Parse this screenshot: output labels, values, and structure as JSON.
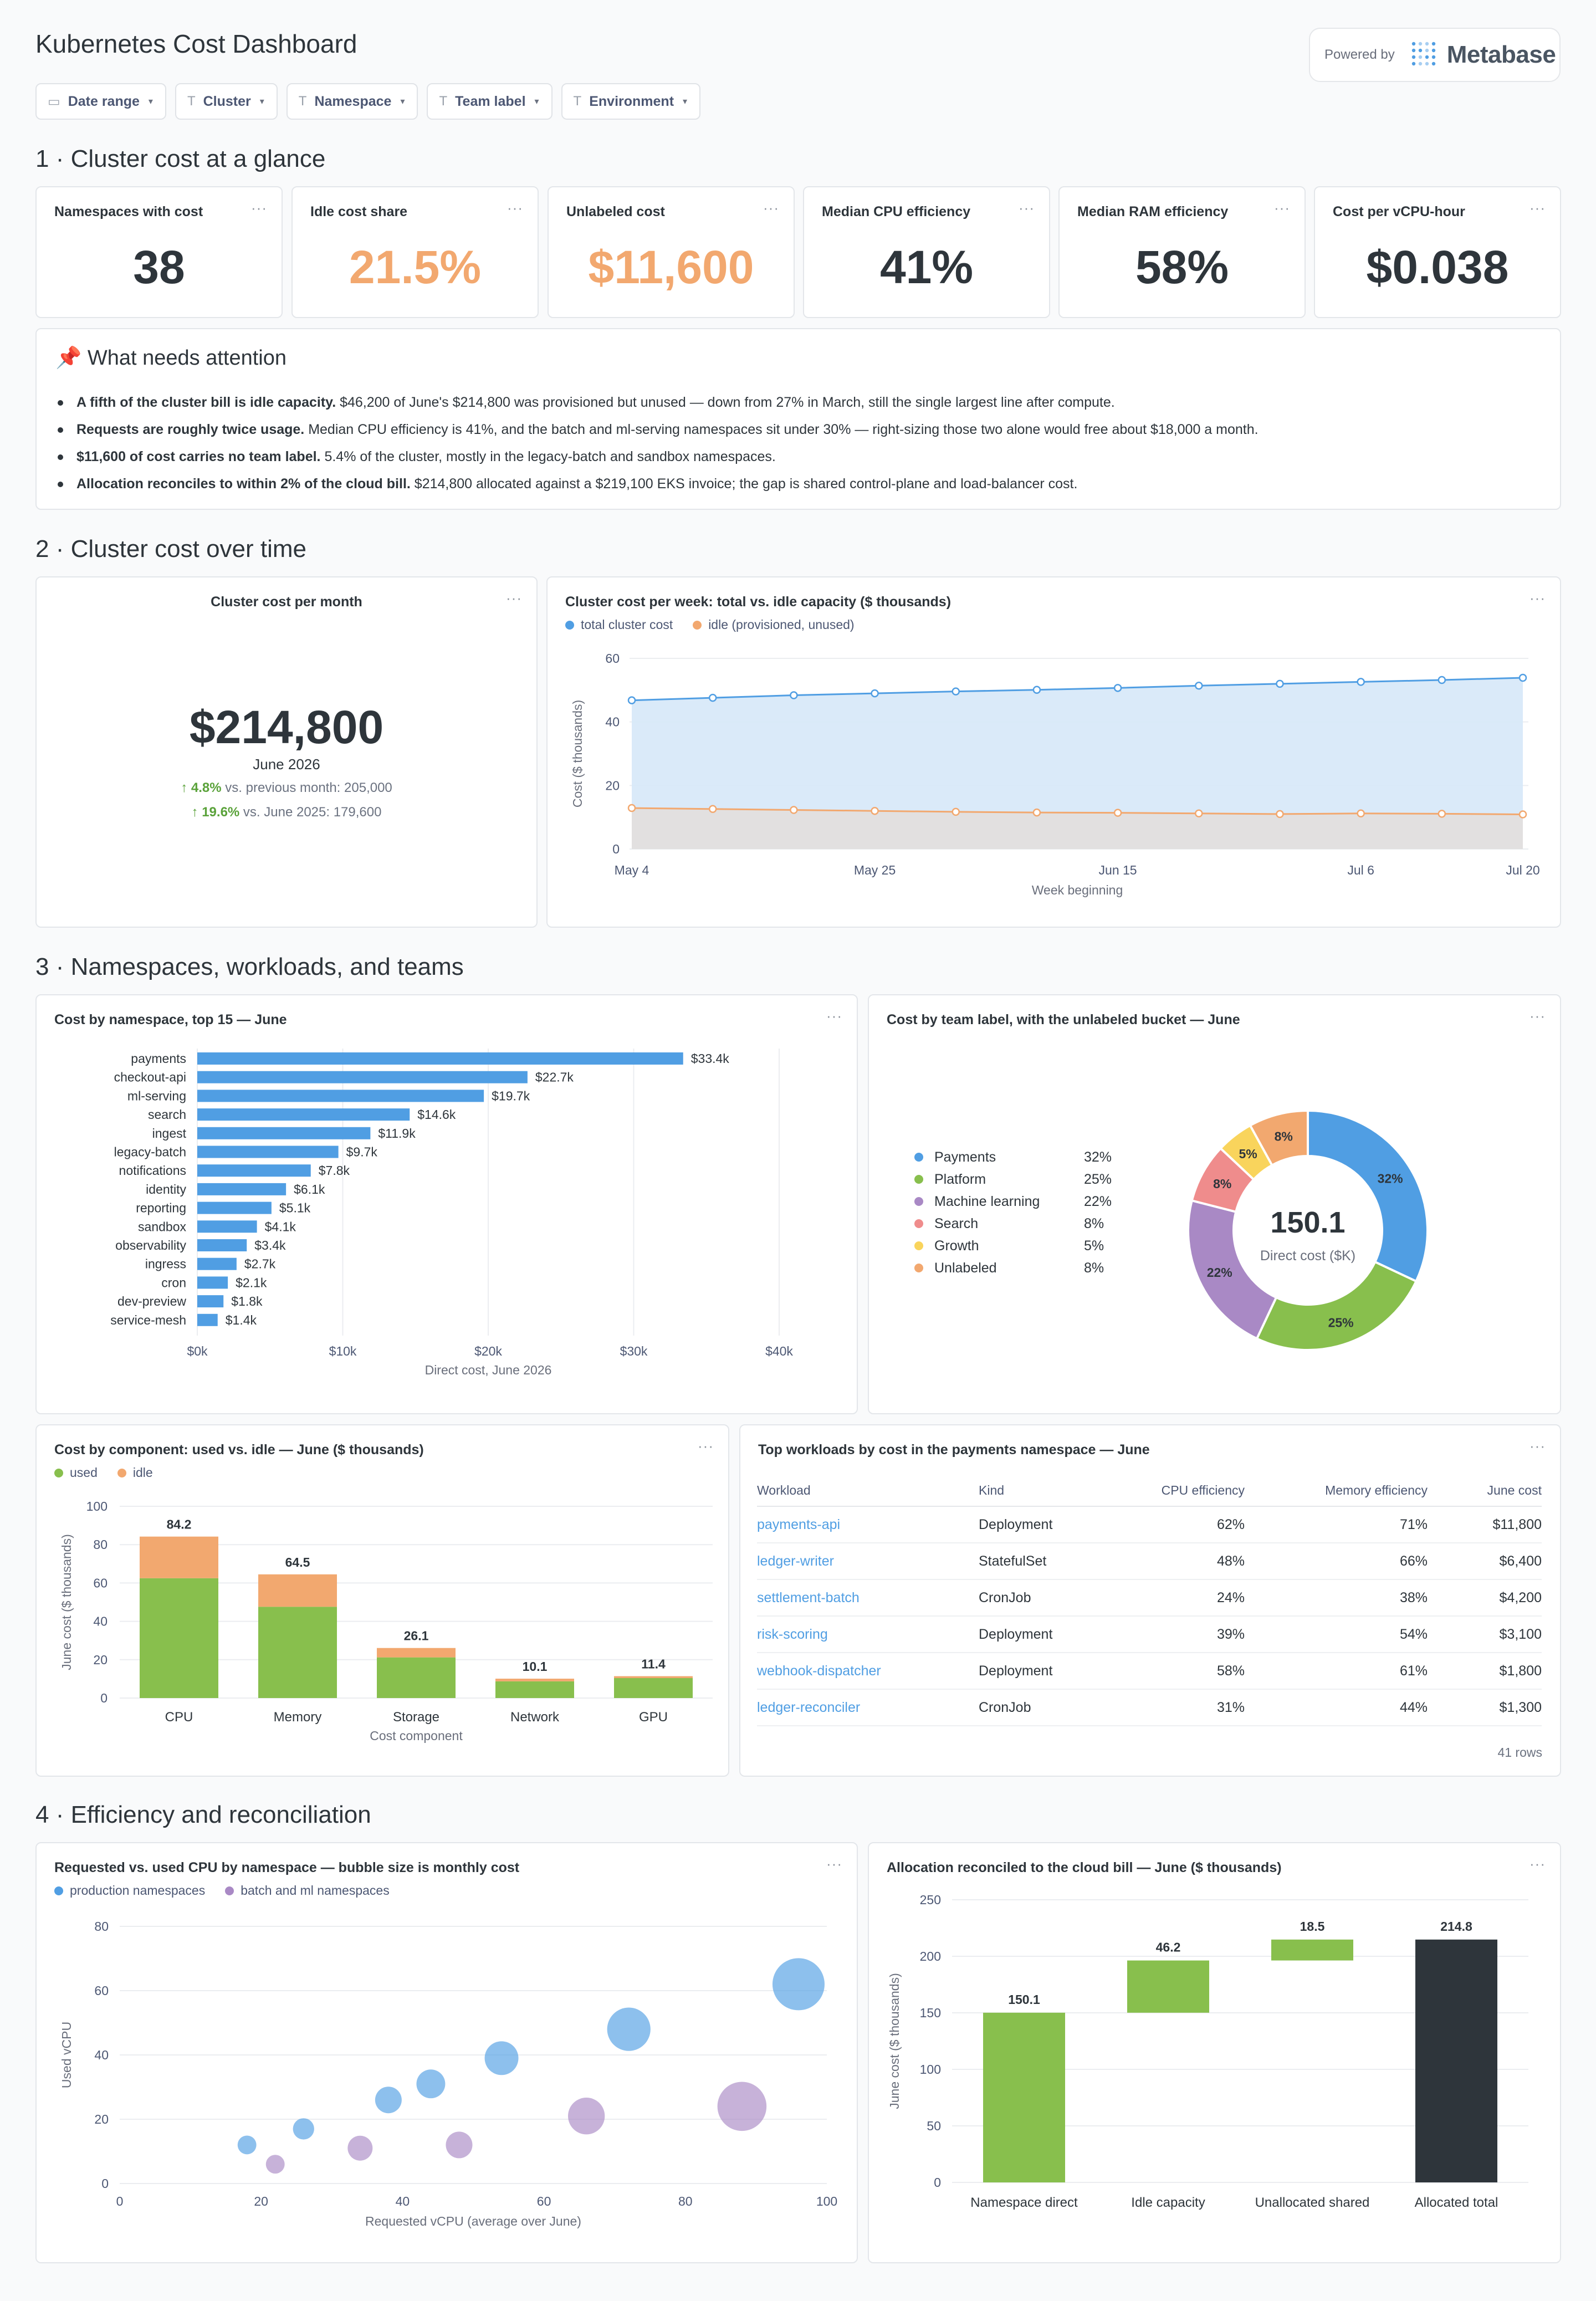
{
  "header": {
    "title": "Kubernetes Cost Dashboard",
    "powered_by": "Powered by",
    "brand": "Metabase"
  },
  "filters": [
    {
      "label": "Date range",
      "icon": "calendar-icon"
    },
    {
      "label": "Cluster",
      "icon": "text-filter-icon"
    },
    {
      "label": "Namespace",
      "icon": "text-filter-icon"
    },
    {
      "label": "Team label",
      "icon": "text-filter-icon"
    },
    {
      "label": "Environment",
      "icon": "text-filter-icon"
    }
  ],
  "sections": {
    "s1": "1 · Cluster cost at a glance",
    "s2": "2 · Cluster cost over time",
    "s3": "3 · Namespaces, workloads, and teams",
    "s4": "4 · Efficiency and reconciliation"
  },
  "menu_glyph": "···",
  "kpis": [
    {
      "label": "Namespaces with cost",
      "value": "38"
    },
    {
      "label": "Idle cost share",
      "value": "21.5%"
    },
    {
      "label": "Unlabeled cost",
      "value": "$11,600"
    },
    {
      "label": "Median CPU efficiency",
      "value": "41%"
    },
    {
      "label": "Median RAM efficiency",
      "value": "58%"
    },
    {
      "label": "Cost per vCPU-hour",
      "value": "$0.038"
    }
  ],
  "attention": {
    "icon": "📌",
    "title": "What needs attention",
    "items": [
      {
        "bold": "A fifth of the cluster bill is idle capacity.",
        "text": " $46,200 of June's $214,800 was provisioned but unused — down from 27% in March, still the single largest line after compute."
      },
      {
        "bold": "Requests are roughly twice usage.",
        "text": " Median CPU efficiency is 41%, and the batch and ml-serving namespaces sit under 30% — right-sizing those two alone would free about $18,000 a month."
      },
      {
        "bold": "$11,600 of cost carries no team label.",
        "text": " 5.4% of the cluster, mostly in the legacy-batch and sandbox namespaces."
      },
      {
        "bold": "Allocation reconciles to within 2% of the cloud bill.",
        "text": " $214,800 allocated against a $219,100 EKS invoice; the gap is shared control-plane and load-balancer cost."
      }
    ]
  },
  "monthly": {
    "title": "Cluster cost per month",
    "value": "$214,800",
    "period": "June 2026",
    "cmp1_pct": "↑ 4.8%",
    "cmp1_text": " vs. previous month: 205,000",
    "cmp2_pct": "↑ 19.6%",
    "cmp2_text": " vs. June 2025: 179,600"
  },
  "chart_data": [
    {
      "id": "weekly",
      "type": "area",
      "title": "Cluster cost per week: total vs. idle capacity ($ thousands)",
      "xlabel": "Week beginning",
      "ylabel": "Cost ($ thousands)",
      "x": [
        "May 4",
        "May 11",
        "May 18",
        "May 25",
        "Jun 1",
        "Jun 8",
        "Jun 15",
        "Jun 22",
        "Jun 29",
        "Jul 6",
        "Jul 13",
        "Jul 20"
      ],
      "x_ticks": [
        "May 4",
        "May 25",
        "Jun 15",
        "Jul 6",
        "Jul 20"
      ],
      "ylim": [
        0,
        60
      ],
      "y_ticks": [
        0,
        20,
        40,
        60
      ],
      "series": [
        {
          "name": "total cluster cost",
          "color": "#509ee3",
          "values": [
            46.8,
            47.6,
            48.4,
            49.0,
            49.6,
            50.1,
            50.7,
            51.4,
            52.0,
            52.6,
            53.2,
            53.9
          ]
        },
        {
          "name": "idle (provisioned, unused)",
          "color": "#f2a86f",
          "values": [
            12.9,
            12.6,
            12.3,
            12.0,
            11.7,
            11.5,
            11.4,
            11.2,
            11.0,
            11.2,
            11.1,
            10.9
          ]
        }
      ]
    },
    {
      "id": "namespace",
      "type": "bar",
      "orientation": "horizontal",
      "title": "Cost by namespace, top 15 — June",
      "xlabel": "Direct cost, June 2026",
      "xlim": [
        0,
        40
      ],
      "x_ticks": [
        "$0k",
        "$10k",
        "$20k",
        "$30k",
        "$40k"
      ],
      "color": "#509ee3",
      "categories": [
        "payments",
        "checkout-api",
        "ml-serving",
        "search",
        "ingest",
        "legacy-batch",
        "notifications",
        "identity",
        "reporting",
        "sandbox",
        "observability",
        "ingress",
        "cron",
        "dev-preview",
        "service-mesh"
      ],
      "values": [
        33.4,
        22.7,
        19.7,
        14.6,
        11.9,
        9.7,
        7.8,
        6.1,
        5.1,
        4.1,
        3.4,
        2.7,
        2.1,
        1.8,
        1.4
      ],
      "labels": [
        "$33.4k",
        "$22.7k",
        "$19.7k",
        "$14.6k",
        "$11.9k",
        "$9.7k",
        "$7.8k",
        "$6.1k",
        "$5.1k",
        "$4.1k",
        "$3.4k",
        "$2.7k",
        "$2.1k",
        "$1.8k",
        "$1.4k"
      ]
    },
    {
      "id": "team",
      "type": "pie",
      "title": "Cost by team label, with the unlabeled bucket — June",
      "center_value": "150.1",
      "center_label": "Direct cost ($K)",
      "slices": [
        {
          "name": "Payments",
          "value": 32,
          "label": "32%",
          "color": "#509ee3"
        },
        {
          "name": "Platform",
          "value": 25,
          "label": "25%",
          "color": "#88bf4d"
        },
        {
          "name": "Machine learning",
          "value": 22,
          "label": "22%",
          "color": "#a989c5"
        },
        {
          "name": "Search",
          "value": 8,
          "label": "8%",
          "color": "#ef8c8c"
        },
        {
          "name": "Growth",
          "value": 5,
          "label": "5%",
          "color": "#f9d45c"
        },
        {
          "name": "Unlabeled",
          "value": 8,
          "label": "8%",
          "color": "#f2a86f"
        }
      ]
    },
    {
      "id": "component",
      "type": "bar",
      "stacked": true,
      "title": "Cost by component: used vs. idle — June ($ thousands)",
      "xlabel": "Cost component",
      "ylabel": "June cost ($ thousands)",
      "ylim": [
        0,
        100
      ],
      "y_ticks": [
        0,
        20,
        40,
        60,
        80,
        100
      ],
      "categories": [
        "CPU",
        "Memory",
        "Storage",
        "Network",
        "GPU"
      ],
      "series": [
        {
          "name": "used",
          "color": "#88bf4d",
          "values": [
            62.5,
            47.6,
            21.2,
            8.7,
            10.4
          ]
        },
        {
          "name": "idle",
          "color": "#f2a86f",
          "values": [
            21.7,
            16.9,
            4.9,
            1.4,
            1.0
          ]
        }
      ],
      "totals": [
        "84.2",
        "64.5",
        "26.1",
        "10.1",
        "11.4"
      ]
    },
    {
      "id": "bubble",
      "type": "scatter",
      "title": "Requested vs. used CPU by namespace — bubble size is monthly cost",
      "xlabel": "Requested vCPU (average over June)",
      "ylabel": "Used vCPU",
      "xlim": [
        0,
        100
      ],
      "ylim": [
        0,
        80
      ],
      "x_ticks": [
        0,
        20,
        40,
        60,
        80,
        100
      ],
      "y_ticks": [
        0,
        20,
        40,
        60,
        80
      ],
      "series": [
        {
          "name": "production namespaces",
          "color": "#509ee3",
          "points": [
            {
              "x": 18,
              "y": 12,
              "cost": 1.4
            },
            {
              "x": 26,
              "y": 17,
              "cost": 2.1
            },
            {
              "x": 38,
              "y": 26,
              "cost": 4.1
            },
            {
              "x": 44,
              "y": 31,
              "cost": 5.1
            },
            {
              "x": 54,
              "y": 39,
              "cost": 7.8
            },
            {
              "x": 72,
              "y": 48,
              "cost": 14.6
            },
            {
              "x": 96,
              "y": 62,
              "cost": 22.7
            }
          ]
        },
        {
          "name": "batch and ml namespaces",
          "color": "#a989c5",
          "points": [
            {
              "x": 22,
              "y": 6,
              "cost": 1.4
            },
            {
              "x": 34,
              "y": 11,
              "cost": 3.4
            },
            {
              "x": 48,
              "y": 12,
              "cost": 4.1
            },
            {
              "x": 66,
              "y": 21,
              "cost": 9.7
            },
            {
              "x": 88,
              "y": 24,
              "cost": 19.7
            }
          ]
        }
      ]
    },
    {
      "id": "waterfall",
      "type": "bar",
      "subtype": "waterfall",
      "title": "Allocation reconciled to the cloud bill — June ($ thousands)",
      "ylabel": "June cost ($ thousands)",
      "ylim": [
        0,
        250
      ],
      "y_ticks": [
        0,
        50,
        100,
        150,
        200,
        250
      ],
      "categories": [
        "Namespace direct",
        "Idle capacity",
        "Unallocated shared",
        "Allocated total"
      ],
      "values": [
        150.1,
        46.2,
        18.5,
        214.8
      ],
      "labels": [
        "150.1",
        "46.2",
        "18.5",
        "214.8"
      ],
      "kinds": [
        "increase",
        "increase",
        "increase",
        "total"
      ],
      "colors": {
        "increase": "#88bf4d",
        "total": "#2e353b"
      }
    }
  ],
  "workloads": {
    "title": "Top workloads by cost in the payments namespace — June",
    "columns": [
      "Workload",
      "Kind",
      "CPU efficiency",
      "Memory efficiency",
      "June cost"
    ],
    "rows": [
      [
        "payments-api",
        "Deployment",
        "62%",
        "71%",
        "$11,800"
      ],
      [
        "ledger-writer",
        "StatefulSet",
        "48%",
        "66%",
        "$6,400"
      ],
      [
        "settlement-batch",
        "CronJob",
        "24%",
        "38%",
        "$4,200"
      ],
      [
        "risk-scoring",
        "Deployment",
        "39%",
        "54%",
        "$3,100"
      ],
      [
        "webhook-dispatcher",
        "Deployment",
        "58%",
        "61%",
        "$1,800"
      ],
      [
        "ledger-reconciler",
        "CronJob",
        "31%",
        "44%",
        "$1,300"
      ]
    ],
    "row_count": "41 rows"
  }
}
